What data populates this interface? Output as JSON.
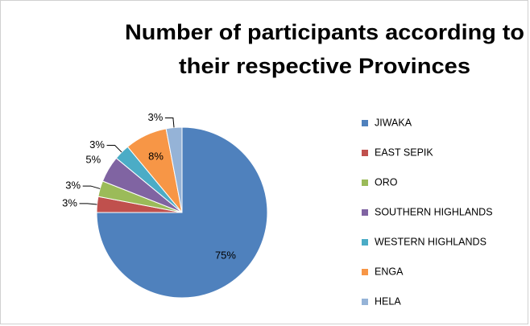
{
  "chart_data": {
    "type": "pie",
    "title": [
      "Number of participants according to",
      "their respective Provinces"
    ],
    "categories": [
      "JIWAKA",
      "EAST SEPIK",
      "ORO",
      "SOUTHERN HIGHLANDS",
      "WESTERN HIGHLANDS",
      "ENGA",
      "HELA"
    ],
    "values": [
      75,
      3,
      3,
      5,
      3,
      8,
      3
    ],
    "value_labels": [
      "75%",
      "3%",
      "3%",
      "5%",
      "3%",
      "8%",
      "3%"
    ],
    "colors": [
      "#4f81bd",
      "#c0504d",
      "#9bbb59",
      "#8064a2",
      "#4bacc6",
      "#f79646",
      "#95b3d7"
    ],
    "legend": "right"
  }
}
